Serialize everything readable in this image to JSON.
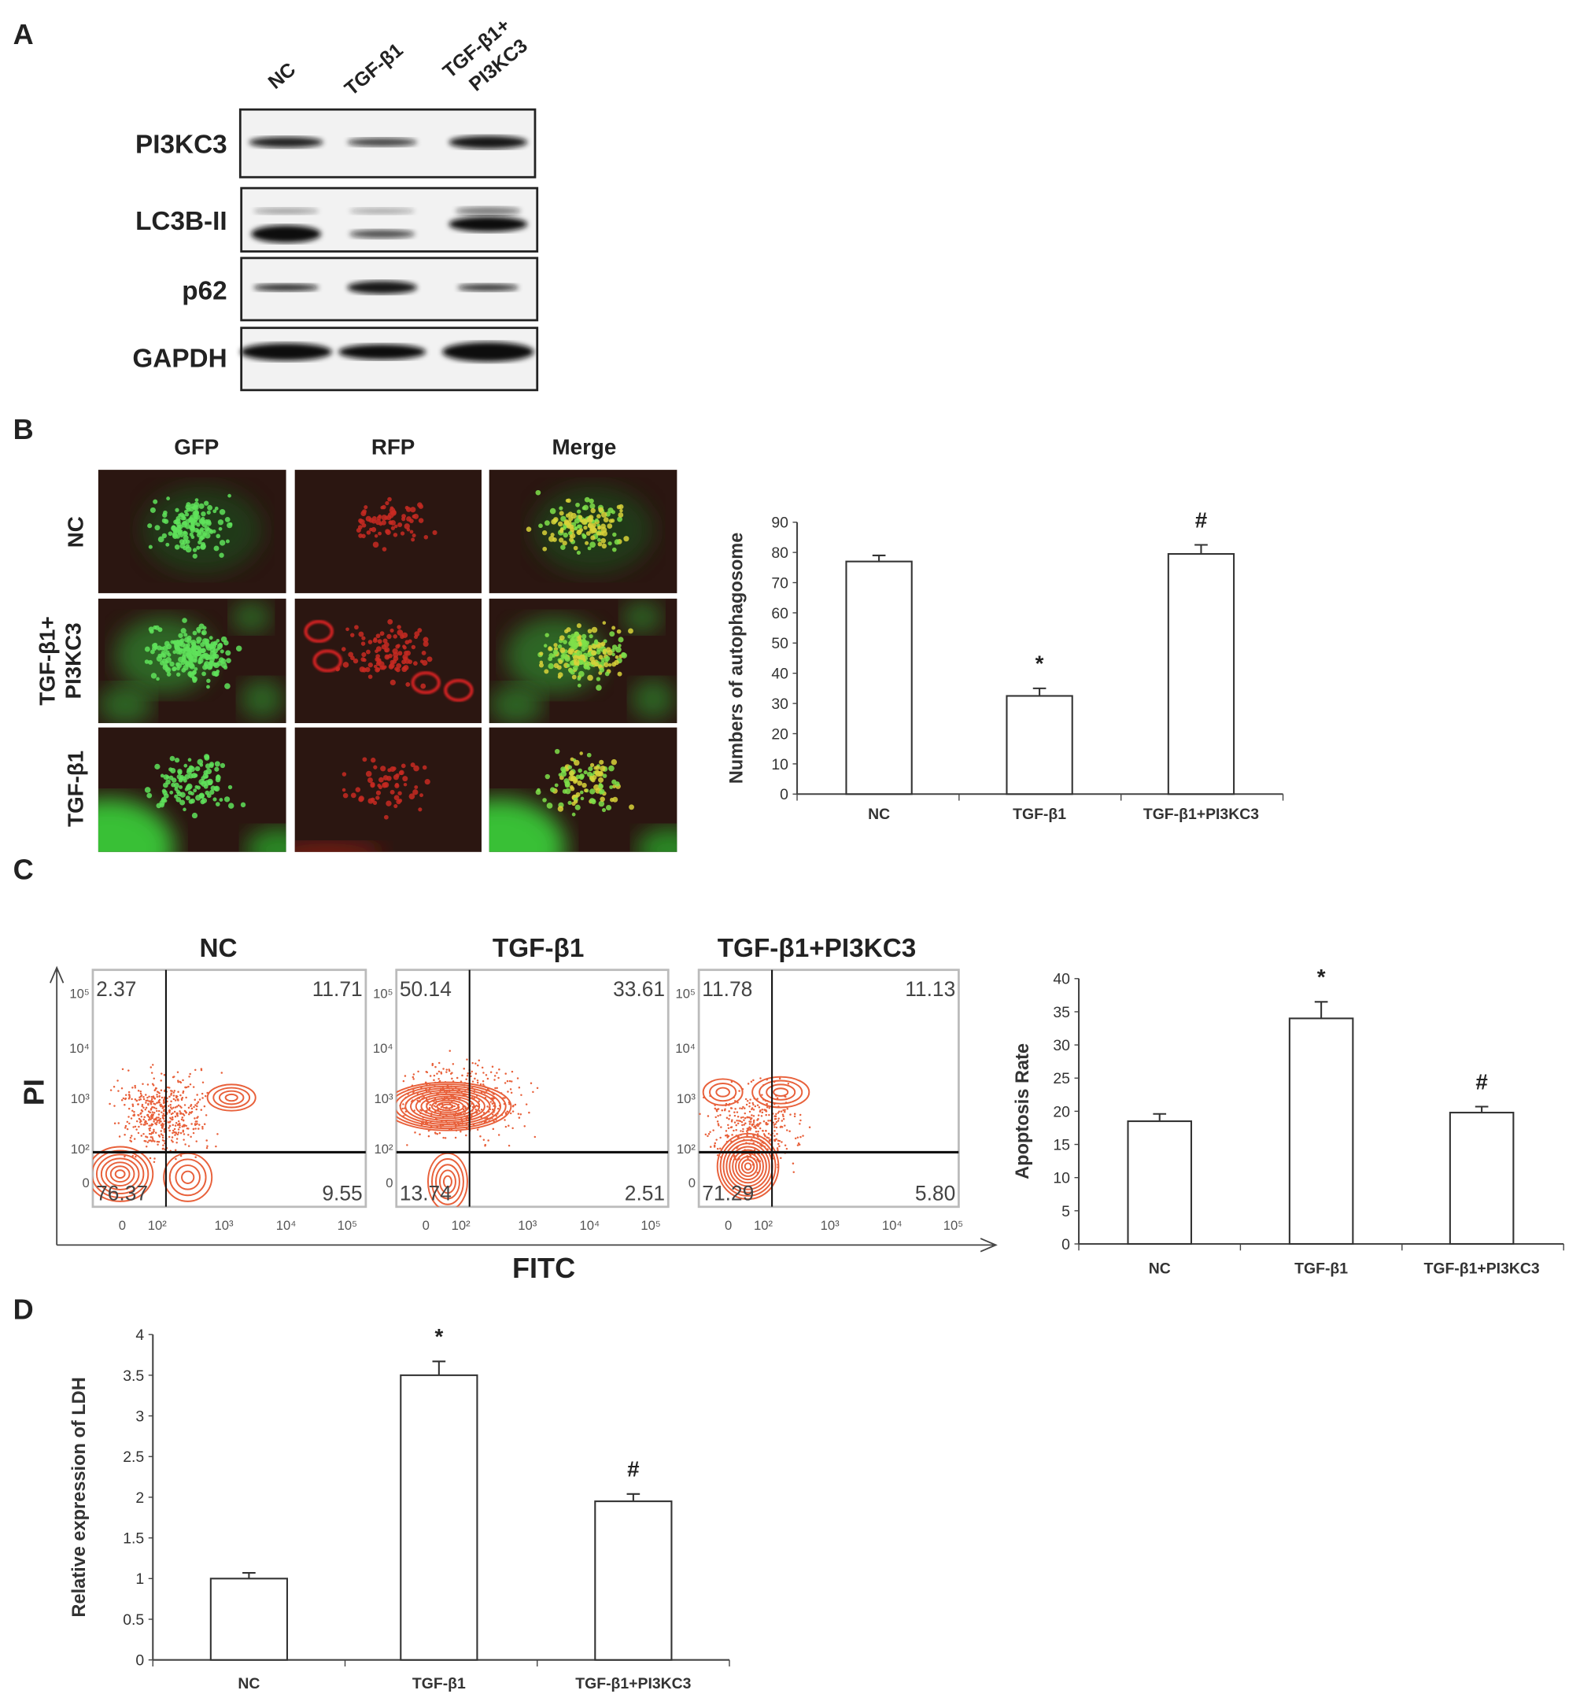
{
  "panels": {
    "a": "A",
    "b": "B",
    "c": "C",
    "d": "D"
  },
  "western_blot": {
    "lanes": [
      "NC",
      "TGF-β1",
      "TGF-β1+",
      "PI3KC3"
    ],
    "proteins": [
      "PI3KC3",
      "LC3B-II",
      "p62",
      "GAPDH"
    ]
  },
  "fluorescence": {
    "columns": [
      "GFP",
      "RFP",
      "Merge"
    ],
    "rows": [
      "NC",
      "TGF-β1+",
      "PI3KC3",
      "TGF-β1"
    ]
  },
  "flow": {
    "titles": [
      "NC",
      "TGF-β1",
      "TGF-β1+PI3KC3"
    ],
    "xlabel": "FITC",
    "ylabel": "PI",
    "y_ticks": [
      "10⁵",
      "10⁴",
      "10³",
      "10²",
      "0"
    ],
    "x_ticks": [
      "0",
      "10²",
      "10³",
      "10⁴",
      "10⁵"
    ],
    "quadrants": [
      {
        "ul": "2.37",
        "ur": "11.71",
        "ll": "76.37",
        "lr": "9.55"
      },
      {
        "ul": "50.14",
        "ur": "33.61",
        "ll": "13.74",
        "lr": "2.51"
      },
      {
        "ul": "11.78",
        "ur": "11.13",
        "ll": "71.29",
        "lr": "5.80"
      }
    ],
    "contour_color": "#e8603a"
  },
  "chart_data": [
    {
      "type": "bar",
      "ylabel": "Numbers of autophagosome",
      "categories": [
        "NC",
        "TGF-β1",
        "TGF-β1+PI3KC3"
      ],
      "values": [
        77,
        32.5,
        79.5
      ],
      "errors": [
        2,
        2.5,
        3
      ],
      "annotations": [
        "",
        "*",
        "#"
      ],
      "ylim": [
        0,
        90
      ],
      "yticks": [
        "0",
        "10",
        "20",
        "30",
        "40",
        "50",
        "60",
        "70",
        "80",
        "90"
      ]
    },
    {
      "type": "bar",
      "ylabel": "Apoptosis Rate",
      "categories": [
        "NC",
        "TGF-β1",
        "TGF-β1+PI3KC3"
      ],
      "values": [
        18.5,
        34,
        19.8
      ],
      "errors": [
        1.1,
        2.5,
        0.9
      ],
      "annotations": [
        "",
        "*",
        "#"
      ],
      "ylim": [
        0,
        40
      ],
      "yticks": [
        "0",
        "5",
        "10",
        "15",
        "20",
        "25",
        "30",
        "35",
        "40"
      ]
    },
    {
      "type": "bar",
      "ylabel": "Relative expression of LDH",
      "categories": [
        "NC",
        "TGF-β1",
        "TGF-β1+PI3KC3"
      ],
      "values": [
        1.0,
        3.5,
        1.95
      ],
      "errors": [
        0.07,
        0.17,
        0.09
      ],
      "annotations": [
        "",
        "*",
        "#"
      ],
      "ylim": [
        0,
        4
      ],
      "yticks": [
        "0",
        "0.5",
        "1",
        "1.5",
        "2",
        "2.5",
        "3",
        "3.5",
        "4"
      ]
    }
  ]
}
